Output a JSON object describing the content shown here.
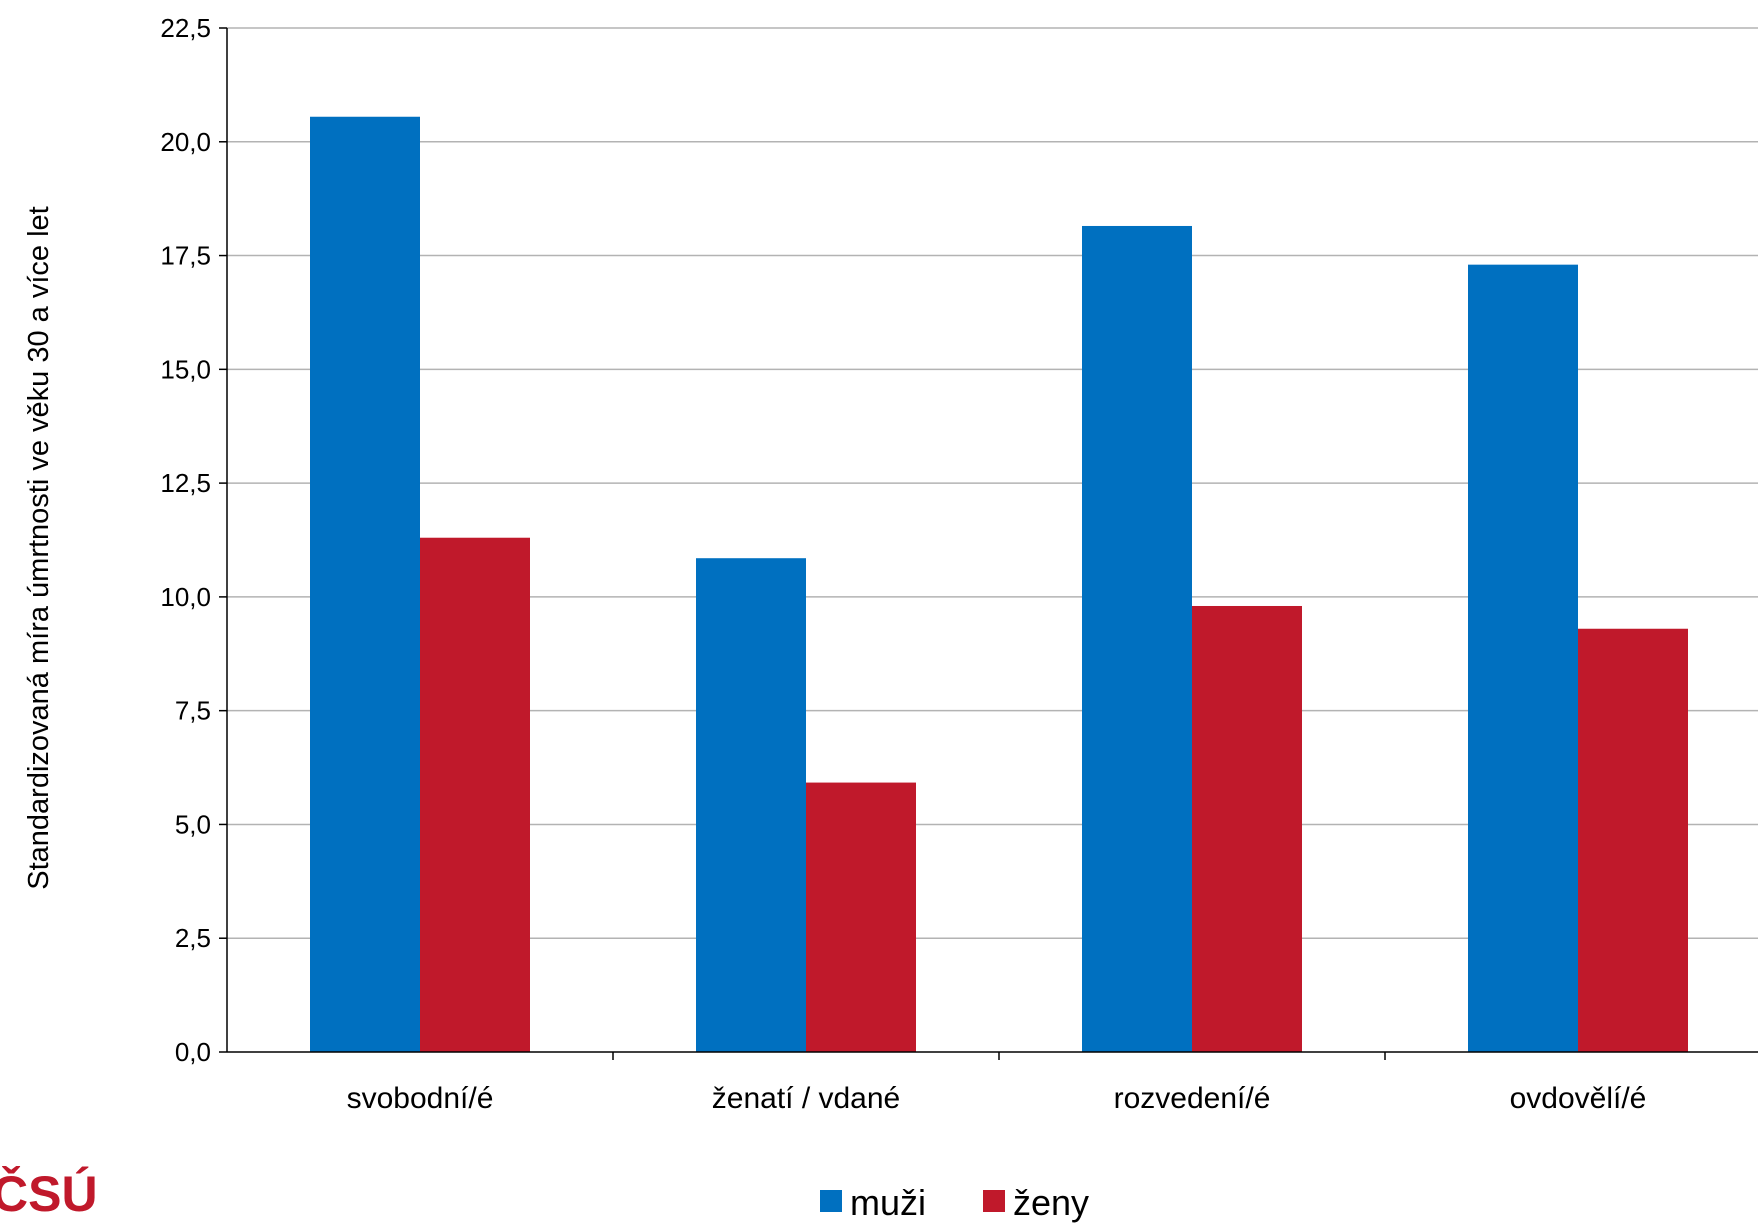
{
  "chart_data": {
    "type": "bar",
    "ylabel": "Standardizovaná míra úmrtnosti ve věku 30 a více let",
    "xlabel": "",
    "categories": [
      "svobodní/é",
      "ženatí / vdané",
      "rozvedení/é",
      "ovdovělí/é"
    ],
    "series": [
      {
        "name": "muži",
        "color": "#0070c0",
        "values": [
          20.55,
          10.85,
          18.15,
          17.3
        ]
      },
      {
        "name": "ženy",
        "color": "#c0192b",
        "values": [
          11.3,
          5.92,
          9.8,
          9.3
        ]
      }
    ],
    "ylim": [
      0,
      22.5
    ],
    "yticks": [
      "0,0",
      "2,5",
      "5,0",
      "7,5",
      "10,0",
      "12,5",
      "15,0",
      "17,5",
      "20,0",
      "22,5"
    ],
    "grid": true,
    "legend_position": "bottom"
  },
  "logo": {
    "text": "ČSÚ",
    "color": "#c0192b"
  }
}
